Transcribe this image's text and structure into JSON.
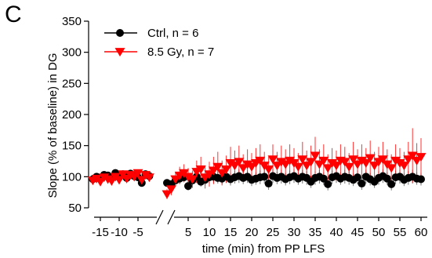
{
  "panel_label": "C",
  "chart_data": {
    "type": "scatter",
    "xlabel": "time (min) from PP LFS",
    "ylabel": "Slope (% of baseline) in DG",
    "ylim": [
      50,
      350
    ],
    "yticks": [
      "50",
      "100",
      "150",
      "200",
      "250",
      "300",
      "350"
    ],
    "baseline_ticks": [
      "-15",
      "-10",
      "-5"
    ],
    "post_ticks": [
      "5",
      "10",
      "15",
      "20",
      "25",
      "30",
      "35",
      "40",
      "45",
      "50",
      "55",
      "60"
    ],
    "broken_x_axis": true,
    "legend_position": "top-left",
    "series": [
      {
        "name": "Ctrl, n = 6",
        "color": "#000000",
        "marker": "circle",
        "baseline": {
          "x": [
            -17,
            -16,
            -15,
            -14,
            -13,
            -12,
            -11,
            -10,
            -9,
            -8,
            -7,
            -6,
            -5,
            -4,
            -3,
            -2
          ],
          "y": [
            96,
            100,
            98,
            103,
            102,
            99,
            106,
            99,
            104,
            98,
            105,
            101,
            99,
            90,
            104,
            101
          ]
        },
        "post": {
          "x": [
            0,
            1,
            2,
            3,
            4,
            5,
            6,
            7,
            8,
            9,
            10,
            11,
            12,
            13,
            14,
            15,
            16,
            17,
            18,
            19,
            20,
            21,
            22,
            23,
            24,
            25,
            26,
            27,
            28,
            29,
            30,
            31,
            32,
            33,
            34,
            35,
            36,
            37,
            38,
            39,
            40,
            41,
            42,
            43,
            44,
            45,
            46,
            47,
            48,
            49,
            50,
            51,
            52,
            53,
            54,
            55,
            56,
            57,
            58,
            59,
            60
          ],
          "y": [
            90,
            88,
            94,
            97,
            99,
            85,
            94,
            100,
            92,
            95,
            99,
            100,
            98,
            97,
            100,
            96,
            99,
            101,
            98,
            100,
            95,
            97,
            99,
            100,
            89,
            101,
            98,
            100,
            96,
            99,
            101,
            97,
            100,
            98,
            92,
            98,
            100,
            97,
            88,
            99,
            101,
            97,
            100,
            98,
            95,
            99,
            89,
            100,
            96,
            92,
            98,
            101,
            97,
            88,
            99,
            100,
            95,
            98,
            100,
            97,
            96
          ],
          "err": [
            6,
            6,
            6,
            8,
            8,
            7,
            8,
            10,
            8,
            9,
            10,
            10,
            9,
            9,
            10,
            10,
            10,
            11,
            10,
            10,
            10,
            10,
            11,
            11,
            10,
            11,
            10,
            11,
            10,
            11,
            11,
            10,
            11,
            11,
            10,
            11,
            11,
            10,
            10,
            11,
            11,
            10,
            11,
            11,
            10,
            11,
            10,
            11,
            10,
            10,
            11,
            11,
            10,
            10,
            11,
            11,
            10,
            11,
            11,
            10,
            10
          ]
        }
      },
      {
        "name": "8.5 Gy, n = 7",
        "color": "#ff0000",
        "marker": "triangle-down",
        "baseline": {
          "x": [
            -17,
            -16,
            -15,
            -14,
            -13,
            -12,
            -11,
            -10,
            -9,
            -8,
            -7,
            -6,
            -5,
            -4,
            -3,
            -2
          ],
          "y": [
            94,
            97,
            92,
            99,
            96,
            93,
            100,
            95,
            104,
            97,
            103,
            100,
            106,
            95,
            103,
            99
          ]
        },
        "post": {
          "x": [
            0,
            1,
            2,
            3,
            4,
            5,
            6,
            7,
            8,
            9,
            10,
            11,
            12,
            13,
            14,
            15,
            16,
            17,
            18,
            19,
            20,
            21,
            22,
            23,
            24,
            25,
            26,
            27,
            28,
            29,
            30,
            31,
            32,
            33,
            34,
            35,
            36,
            37,
            38,
            39,
            40,
            41,
            42,
            43,
            44,
            45,
            46,
            47,
            48,
            49,
            50,
            51,
            52,
            53,
            54,
            55,
            56,
            57,
            58,
            59,
            60
          ],
          "y": [
            72,
            80,
            96,
            102,
            106,
            100,
            96,
            108,
            112,
            99,
            104,
            110,
            116,
            106,
            112,
            122,
            118,
            124,
            114,
            120,
            116,
            122,
            126,
            118,
            112,
            128,
            118,
            124,
            120,
            126,
            122,
            116,
            128,
            118,
            124,
            134,
            120,
            126,
            114,
            122,
            118,
            126,
            124,
            116,
            128,
            120,
            126,
            122,
            130,
            118,
            124,
            128,
            120,
            114,
            126,
            122,
            118,
            128,
            134,
            126,
            132
          ],
          "err": [
            8,
            10,
            12,
            14,
            14,
            14,
            14,
            18,
            20,
            18,
            20,
            22,
            24,
            20,
            22,
            26,
            24,
            26,
            22,
            24,
            22,
            24,
            26,
            22,
            20,
            24,
            22,
            26,
            24,
            26,
            24,
            22,
            28,
            24,
            26,
            30,
            24,
            26,
            22,
            24,
            24,
            26,
            24,
            22,
            28,
            24,
            26,
            24,
            28,
            22,
            24,
            28,
            24,
            22,
            26,
            24,
            22,
            28,
            44,
            28,
            30
          ]
        }
      }
    ]
  }
}
